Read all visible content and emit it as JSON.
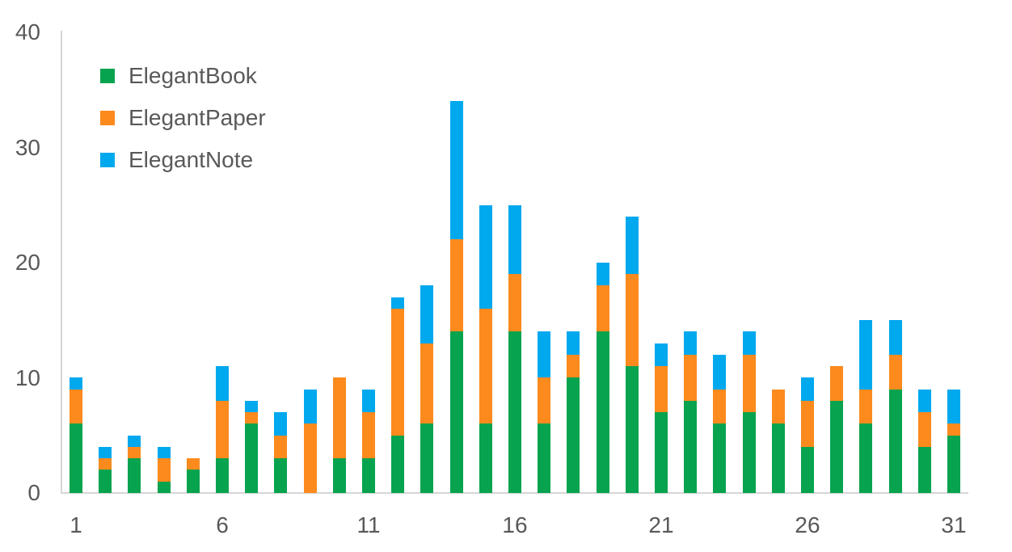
{
  "chart_data": {
    "type": "bar",
    "stacked": true,
    "title": "",
    "xlabel": "",
    "ylabel": "",
    "categories": [
      1,
      2,
      3,
      4,
      5,
      6,
      7,
      8,
      9,
      10,
      11,
      12,
      13,
      14,
      15,
      16,
      17,
      18,
      19,
      20,
      21,
      22,
      23,
      24,
      25,
      26,
      27,
      28,
      29,
      30,
      31
    ],
    "series": [
      {
        "name": "ElegantBook",
        "color": "#07a34e",
        "values": [
          6,
          2,
          3,
          1,
          2,
          3,
          6,
          3,
          0,
          3,
          3,
          5,
          6,
          14,
          6,
          14,
          6,
          10,
          14,
          11,
          7,
          8,
          6,
          7,
          6,
          4,
          8,
          6,
          9,
          4,
          5
        ]
      },
      {
        "name": "ElegantPaper",
        "color": "#fc8a1d",
        "values": [
          3,
          1,
          1,
          2,
          1,
          5,
          1,
          2,
          6,
          7,
          4,
          11,
          7,
          8,
          10,
          5,
          4,
          2,
          4,
          8,
          4,
          4,
          3,
          5,
          3,
          4,
          3,
          3,
          3,
          3,
          1
        ]
      },
      {
        "name": "ElegantNote",
        "color": "#00a8ee",
        "values": [
          1,
          1,
          1,
          1,
          0,
          3,
          1,
          2,
          3,
          0,
          2,
          1,
          5,
          12,
          9,
          6,
          4,
          2,
          2,
          5,
          2,
          2,
          3,
          2,
          0,
          2,
          0,
          6,
          3,
          2,
          3
        ]
      }
    ],
    "ylim": [
      0,
      40
    ],
    "yticks": [
      0,
      10,
      20,
      30,
      40
    ],
    "xticks": [
      1,
      6,
      11,
      16,
      21,
      26,
      31
    ],
    "grid": false,
    "legend_position": "top-left",
    "colors": {
      "axis_line": "#d6d6d6",
      "tick_label": "#595959",
      "background": "#ffffff"
    }
  }
}
